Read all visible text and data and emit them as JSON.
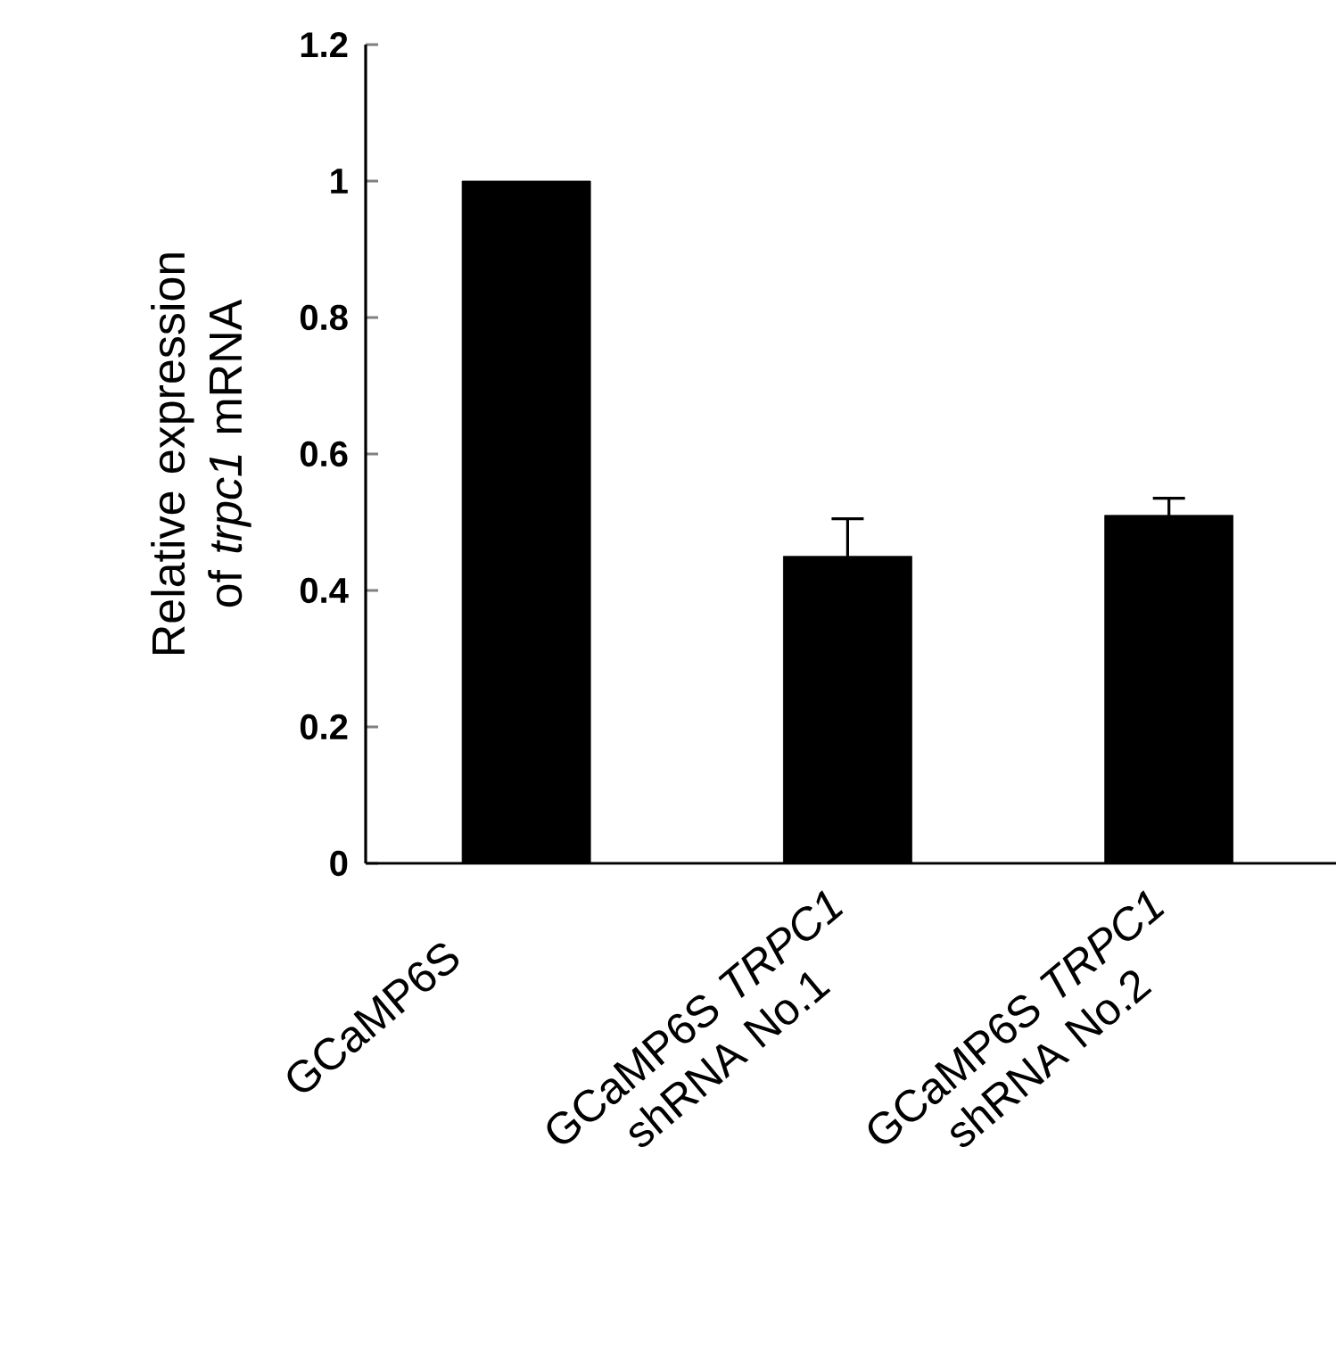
{
  "chart_data": {
    "type": "bar",
    "ylabel": "Relative expression of *trpc1* mRNA",
    "categories": [
      "GCaMP6S",
      "GCaMP6S *TRPC1* shRNA No.1",
      "GCaMP6S *TRPC1* shRNA No.2"
    ],
    "values": [
      1,
      0.45,
      0.51
    ],
    "errors": [
      null,
      0.055,
      0.025
    ],
    "color": "#000000",
    "ylim": [
      0,
      1.2
    ],
    "yticks": [
      0,
      0.2,
      0.4,
      0.6,
      0.8,
      1,
      1.2
    ],
    "tick_labels": "both"
  }
}
